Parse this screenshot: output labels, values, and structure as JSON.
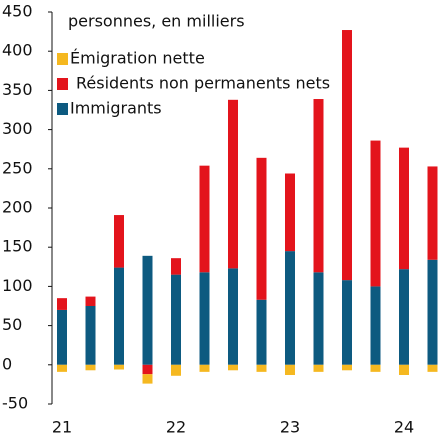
{
  "chart_data": {
    "type": "bar",
    "stacked": true,
    "subtitle": "personnes, en milliers",
    "categories": [
      "21",
      null,
      null,
      null,
      "22",
      null,
      null,
      null,
      "23",
      null,
      null,
      null,
      "24",
      null
    ],
    "series": [
      {
        "name": "Émigration nette",
        "color": "#f5b820",
        "values": [
          -9,
          -7,
          -6,
          -12,
          -14,
          -9,
          -7,
          -9,
          -13,
          -9,
          -7,
          -9,
          -13,
          -9
        ]
      },
      {
        "name": "Résidents non permanents nets",
        "color": "#e3141c",
        "values": [
          15,
          12,
          67,
          -12,
          21,
          136,
          215,
          181,
          99,
          221,
          319,
          186,
          155,
          119
        ]
      },
      {
        "name": "Immigrants",
        "color": "#0d5a80",
        "values": [
          70,
          75,
          124,
          139,
          115,
          118,
          123,
          83,
          145,
          118,
          108,
          100,
          122,
          134
        ]
      }
    ],
    "ylim": [
      -50,
      450
    ],
    "yticks": [
      -50,
      0,
      50,
      100,
      150,
      200,
      250,
      300,
      350,
      400,
      450
    ],
    "legend": "upper left",
    "grid": false
  }
}
